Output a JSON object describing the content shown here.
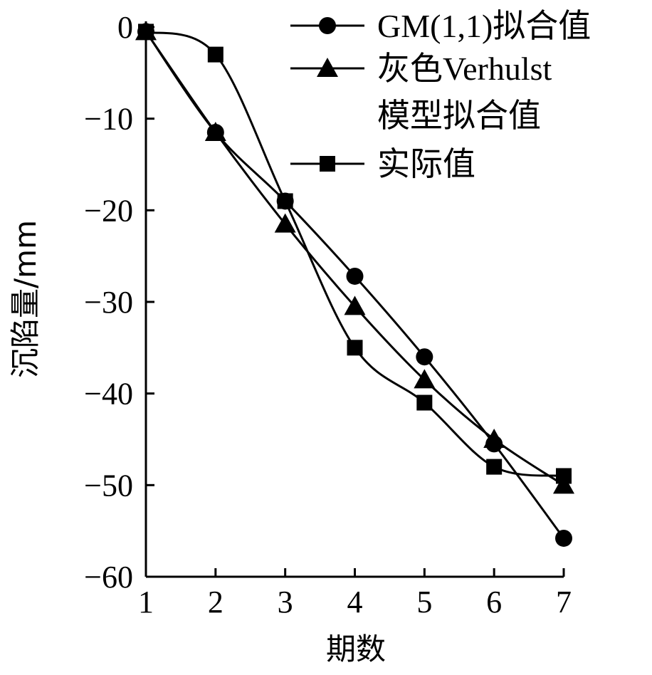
{
  "chart_data": {
    "type": "line",
    "title": "",
    "xlabel": "期数",
    "ylabel": "沉陷量/mm",
    "x": [
      1,
      2,
      3,
      4,
      5,
      6,
      7
    ],
    "xlim": [
      1,
      7
    ],
    "ylim": [
      -60,
      0
    ],
    "xticks": [
      "1",
      "2",
      "3",
      "4",
      "5",
      "6",
      "7"
    ],
    "yticks": [
      "0",
      "−10",
      "−20",
      "−30",
      "−40",
      "−50",
      "−60"
    ],
    "ytick_values": [
      0,
      -10,
      -20,
      -30,
      -40,
      -50,
      -60
    ],
    "grid": false,
    "legend_position": "top-right",
    "series": [
      {
        "name": "GM(1,1)拟合值",
        "marker": "circle",
        "values": [
          -0.5,
          -11.5,
          -19,
          -27.2,
          -36,
          -45.5,
          -55.8
        ]
      },
      {
        "name": "灰色Verhulst模型拟合值",
        "legend_lines": [
          "灰色Verhulst",
          "模型拟合值"
        ],
        "marker": "triangle",
        "values": [
          -0.5,
          -11.5,
          -21.5,
          -30.5,
          -38.5,
          -45,
          -50
        ]
      },
      {
        "name": "实际值",
        "marker": "square",
        "values": [
          -0.5,
          -3,
          -19,
          -35,
          -41,
          -48,
          -49
        ]
      }
    ]
  }
}
